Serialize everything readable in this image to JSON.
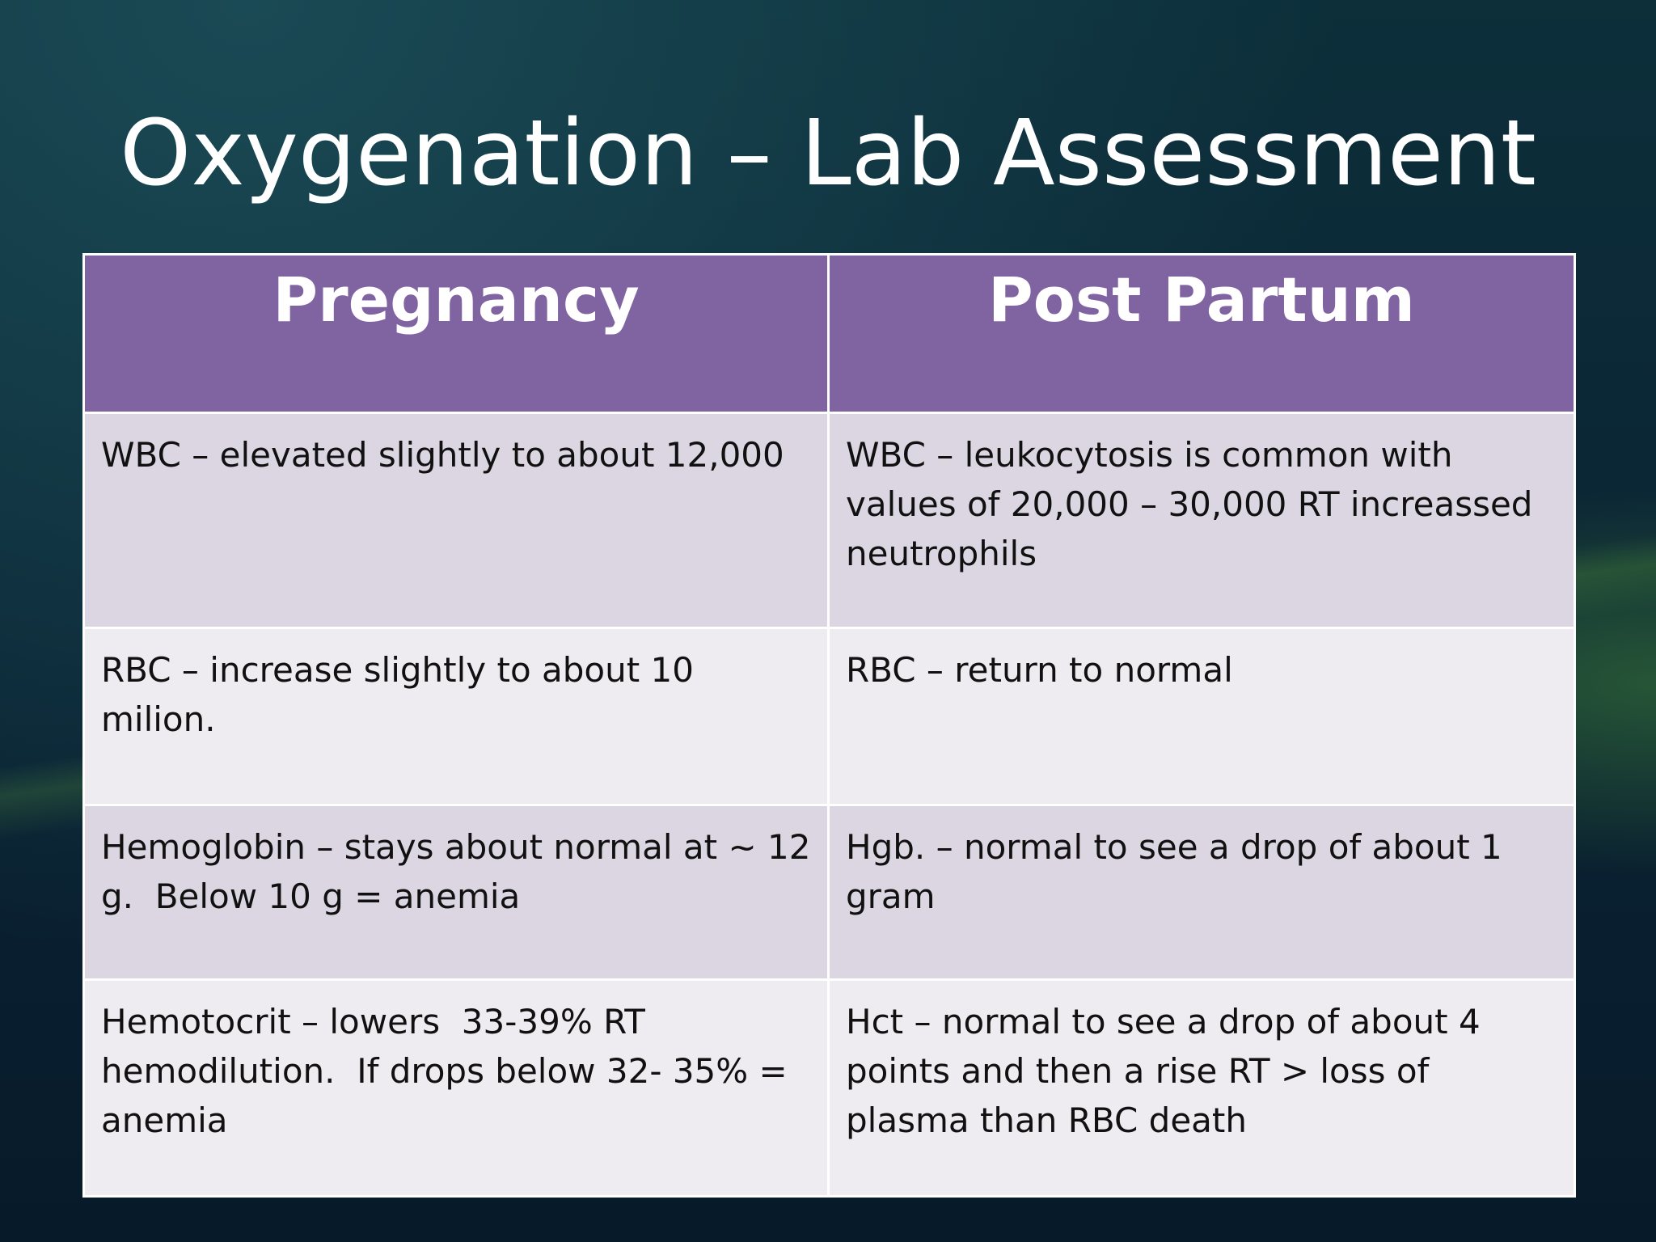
{
  "header": {
    "title": "Oxygenation – Lab Assessment"
  },
  "table": {
    "columns": [
      "Pregnancy",
      "Post Partum"
    ],
    "rows": [
      [
        "WBC – elevated slightly to about 12,000",
        "WBC – leukocytosis is common with values of 20,000 – 30,000 RT increassed neutrophils"
      ],
      [
        "RBC – increase slightly to about 10 milion.",
        "RBC – return to normal"
      ],
      [
        "Hemoglobin – stays about normal at ~ 12 g.  Below 10 g = anemia",
        "Hgb. – normal to see a drop of about 1 gram"
      ],
      [
        "Hemotocrit – lowers  33-39% RT hemodilution.  If drops below 32- 35% = anemia",
        "Hct – normal to see a drop of about 4 points and then a rise RT > loss of plasma than RBC death"
      ]
    ]
  }
}
